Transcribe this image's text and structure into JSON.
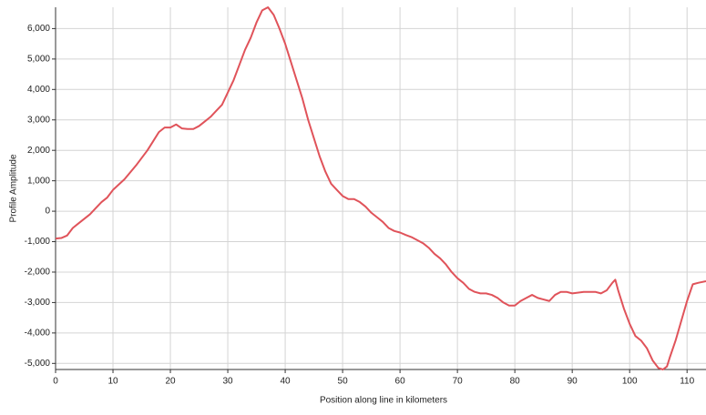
{
  "chart_data": {
    "type": "line",
    "xlabel": "Position along line in kilometers",
    "ylabel": "Profile Amplitude",
    "x": [
      0,
      1,
      2,
      3,
      4,
      5,
      6,
      7,
      8,
      9,
      10,
      12,
      14,
      16,
      17,
      18,
      19,
      20,
      21,
      22,
      23,
      24,
      25,
      26,
      27,
      28,
      29,
      30,
      31,
      32,
      33,
      34,
      35,
      36,
      37,
      38,
      39,
      40,
      41,
      42,
      43,
      44,
      45,
      46,
      47,
      48,
      49,
      50,
      51,
      52,
      53,
      54,
      55,
      56,
      57,
      58,
      59,
      60,
      61,
      62,
      63,
      64,
      65,
      66,
      67,
      68,
      69,
      70,
      71,
      72,
      73,
      74,
      75,
      76,
      77,
      78,
      79,
      80,
      81,
      82,
      83,
      84,
      85,
      86,
      87,
      88,
      89,
      90,
      92,
      94,
      95,
      96,
      97,
      97.5,
      98,
      99,
      100,
      101,
      102,
      103,
      104,
      105,
      105.8,
      106.5,
      107,
      108,
      109,
      110,
      111,
      112,
      113.3
    ],
    "series": [
      {
        "name": "Profile",
        "color": "#e0535a",
        "values": [
          -900,
          -880,
          -800,
          -550,
          -400,
          -250,
          -100,
          100,
          300,
          450,
          700,
          1050,
          1500,
          2000,
          2300,
          2600,
          2750,
          2750,
          2850,
          2720,
          2700,
          2700,
          2800,
          2950,
          3100,
          3300,
          3500,
          3900,
          4300,
          4800,
          5300,
          5700,
          6200,
          6600,
          6700,
          6450,
          6000,
          5500,
          4900,
          4300,
          3700,
          3000,
          2400,
          1800,
          1300,
          900,
          700,
          500,
          400,
          400,
          300,
          150,
          -50,
          -200,
          -350,
          -550,
          -650,
          -700,
          -780,
          -850,
          -950,
          -1050,
          -1200,
          -1400,
          -1550,
          -1750,
          -2000,
          -2200,
          -2350,
          -2550,
          -2650,
          -2700,
          -2700,
          -2750,
          -2850,
          -3000,
          -3100,
          -3100,
          -2950,
          -2850,
          -2750,
          -2850,
          -2900,
          -2950,
          -2750,
          -2650,
          -2650,
          -2700,
          -2650,
          -2650,
          -2700,
          -2600,
          -2350,
          -2250,
          -2600,
          -3200,
          -3700,
          -4100,
          -4250,
          -4500,
          -4900,
          -5150,
          -5200,
          -5100,
          -4800,
          -4250,
          -3600,
          -2950,
          -2400,
          -2350,
          -2300
        ]
      }
    ],
    "xlim": [
      0,
      113.3
    ],
    "ylim": [
      -5200,
      6700
    ],
    "xticks": [
      0,
      10,
      20,
      30,
      40,
      50,
      60,
      70,
      80,
      90,
      100,
      110
    ],
    "yticks": [
      {
        "value": 6000,
        "label": "6,000"
      },
      {
        "value": 5000,
        "label": "5,000"
      },
      {
        "value": 4000,
        "label": "4,000"
      },
      {
        "value": 3000,
        "label": "3,000"
      },
      {
        "value": 2000,
        "label": "2,000"
      },
      {
        "value": 1000,
        "label": "1,000"
      },
      0,
      {
        "value": -1000,
        "label": "-1,000"
      },
      {
        "value": -2000,
        "label": "-2,000"
      },
      {
        "value": -3000,
        "label": "-3,000"
      },
      {
        "value": -4000,
        "label": "-4,000"
      },
      {
        "value": -5000,
        "label": "-5,000"
      }
    ],
    "grid": true
  }
}
